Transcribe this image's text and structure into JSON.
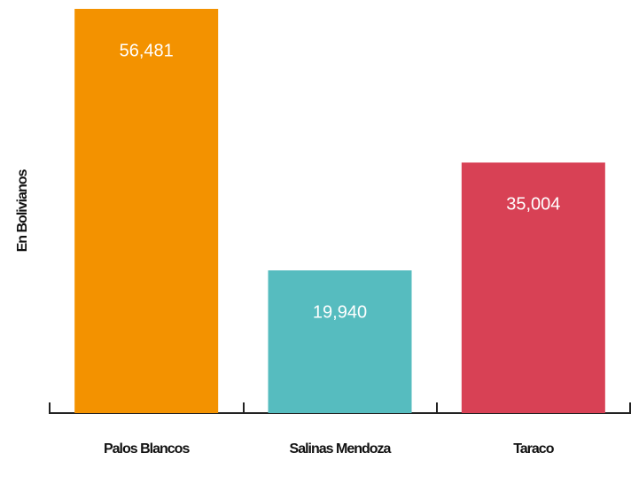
{
  "chart_data": {
    "type": "bar",
    "y_label": "En Bolivianos",
    "categories": [
      "Palos Blancos",
      "Salinas Mendoza",
      "Taraco"
    ],
    "values": [
      56481,
      19940,
      35004
    ],
    "value_labels": [
      "56,481",
      "19,940",
      "35,004"
    ],
    "colors": [
      "#f39200",
      "#56bcbf",
      "#d84155"
    ],
    "ylim": [
      0,
      56481
    ]
  }
}
